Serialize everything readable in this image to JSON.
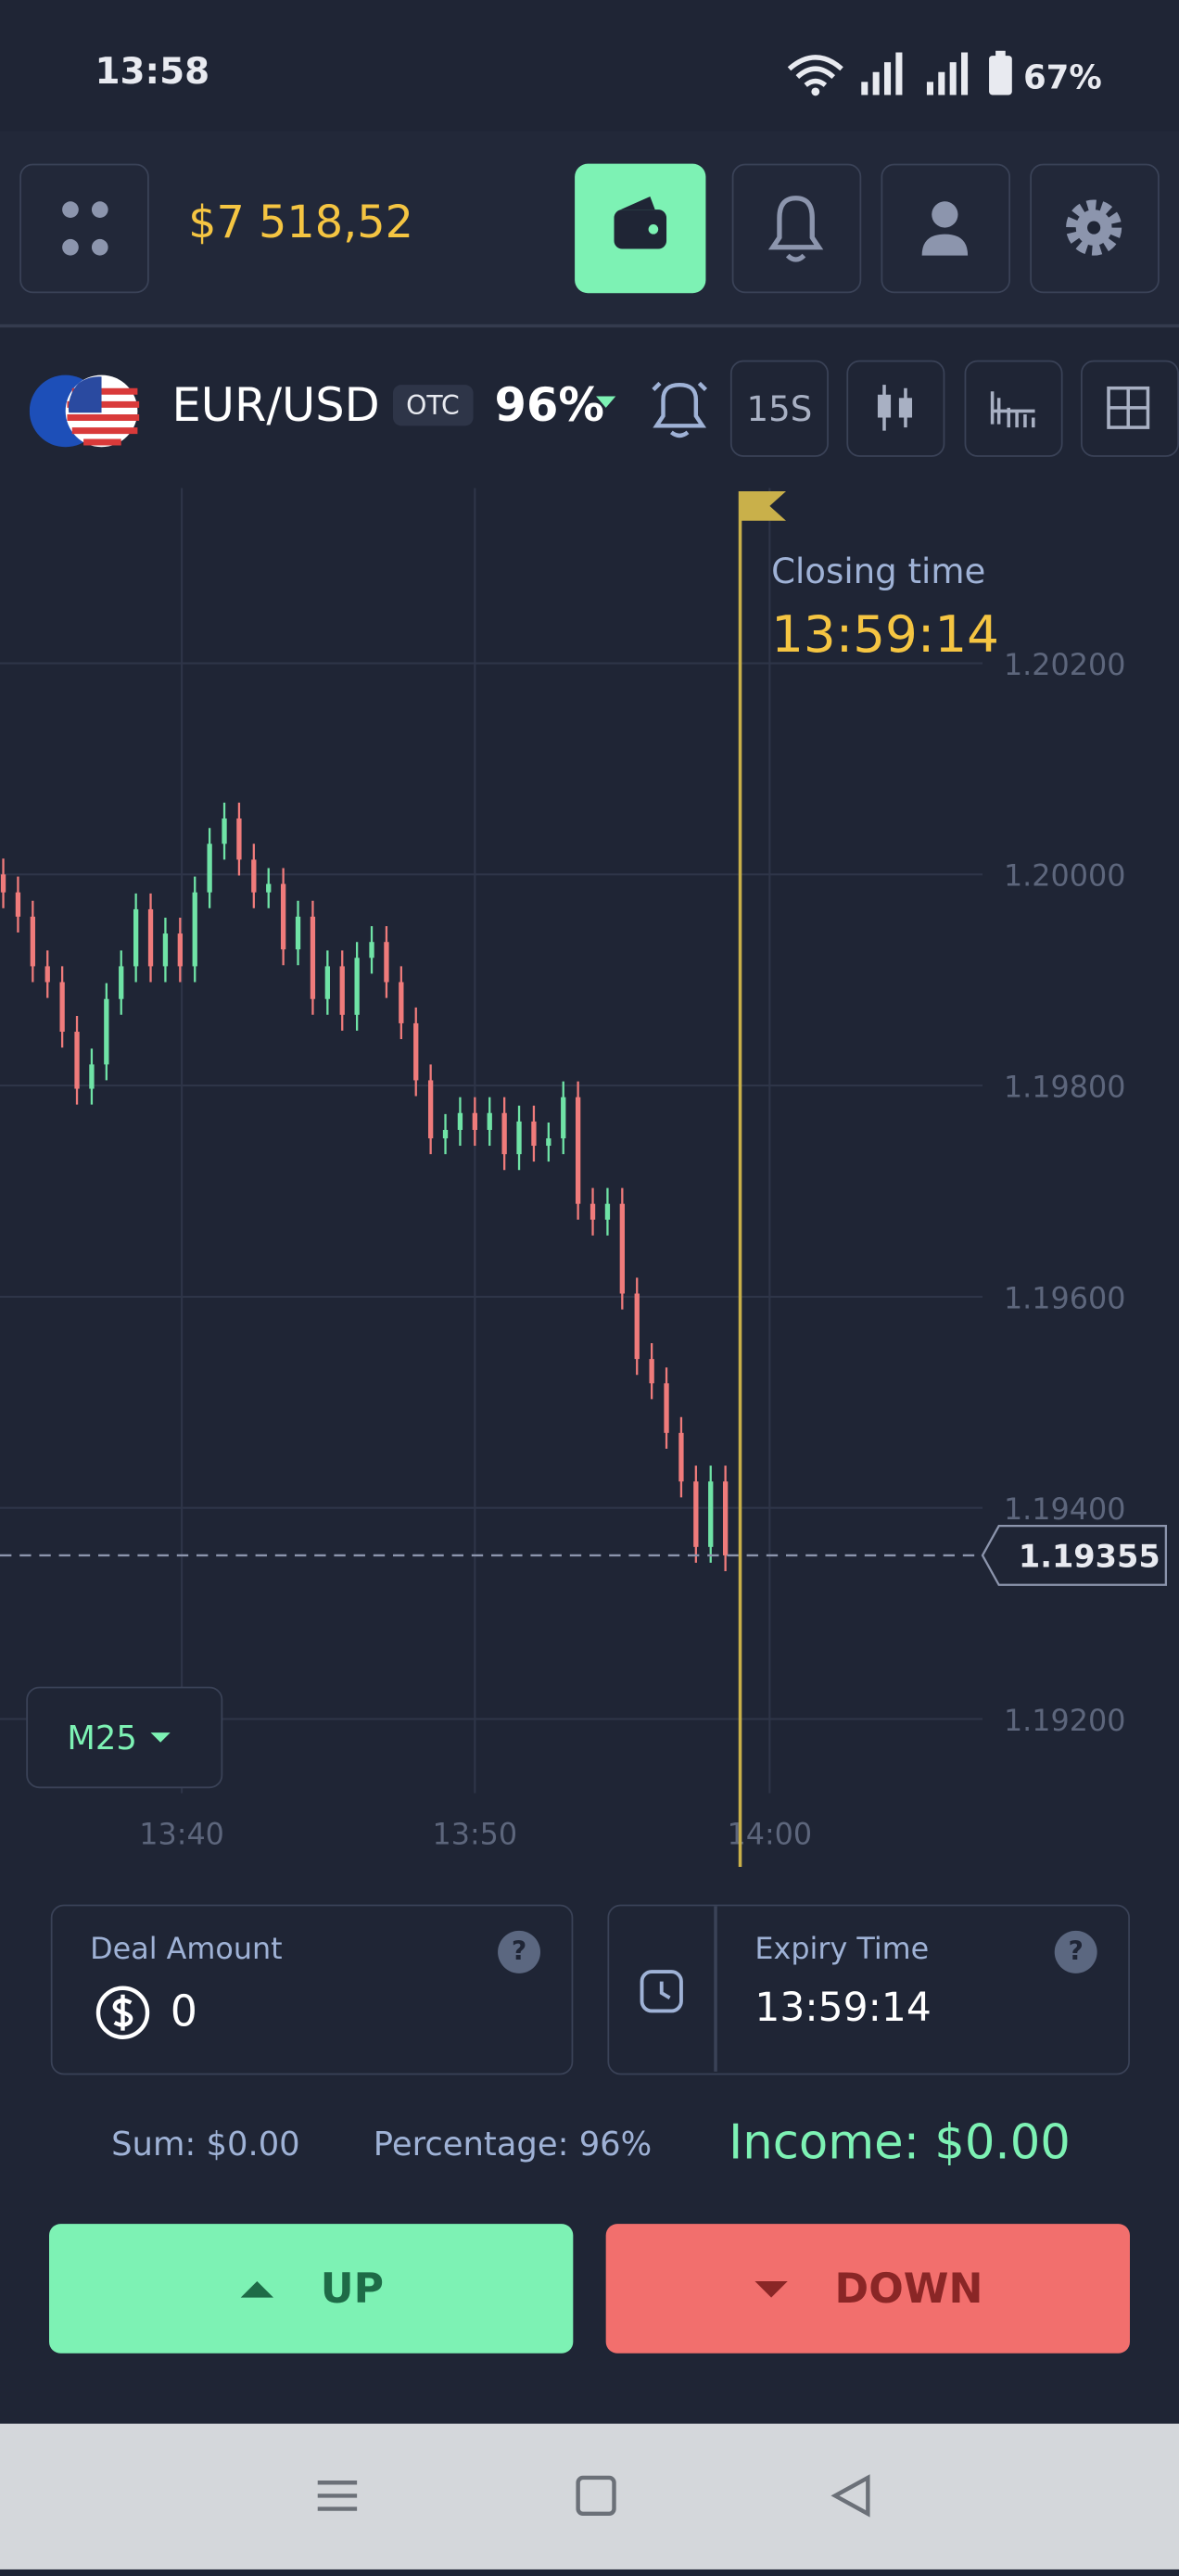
{
  "status_bar": {
    "time": "13:58",
    "battery": "67%"
  },
  "header": {
    "balance": "$7 518,52"
  },
  "asset_bar": {
    "pair": "EUR/USD",
    "badge": "OTC",
    "payout": "96%",
    "timeframe": "15S"
  },
  "chart_data": {
    "type": "candlestick",
    "up_color": "#6fe3a6",
    "down_color": "#ef7b7b",
    "open": [
      1.2,
      1.19983,
      1.1996,
      1.19913,
      1.19898,
      1.19851,
      1.19797,
      1.1982,
      1.19882,
      1.19913,
      1.19967,
      1.19913,
      1.19944,
      1.19913,
      1.19983,
      1.20029,
      1.20053,
      1.20014,
      1.19983,
      1.19991,
      1.19929,
      1.1996,
      1.19882,
      1.19913,
      1.19867,
      1.19921,
      1.19936,
      1.19898,
      1.19859,
      1.19805,
      1.1975,
      1.19758,
      1.19774,
      1.19758,
      1.19774,
      1.19735,
      1.19766,
      1.19743,
      1.1975,
      1.19789,
      1.19688,
      1.19673,
      1.19688,
      1.19603,
      1.19541,
      1.19518,
      1.19471,
      1.19425,
      1.19363,
      1.19425
    ],
    "high": [
      1.20015,
      1.19998,
      1.19975,
      1.19928,
      1.19913,
      1.19866,
      1.19835,
      1.19897,
      1.19928,
      1.19982,
      1.19982,
      1.19959,
      1.19959,
      1.19998,
      1.20044,
      1.20068,
      1.20068,
      1.20029,
      1.20006,
      1.20006,
      1.19975,
      1.19975,
      1.19928,
      1.19928,
      1.19936,
      1.19951,
      1.19951,
      1.19913,
      1.19874,
      1.1982,
      1.19773,
      1.19789,
      1.19789,
      1.19789,
      1.19789,
      1.19781,
      1.19781,
      1.19765,
      1.19804,
      1.19804,
      1.19703,
      1.19703,
      1.19703,
      1.19618,
      1.19556,
      1.19533,
      1.19486,
      1.1944,
      1.1944,
      1.1944
    ],
    "low": [
      1.19968,
      1.19945,
      1.19898,
      1.19883,
      1.19836,
      1.19782,
      1.19782,
      1.19805,
      1.19867,
      1.19898,
      1.19898,
      1.19898,
      1.19898,
      1.19898,
      1.19968,
      1.20014,
      1.19999,
      1.19968,
      1.19968,
      1.19914,
      1.19914,
      1.19867,
      1.19867,
      1.19852,
      1.19852,
      1.19906,
      1.19883,
      1.19844,
      1.1979,
      1.19735,
      1.19735,
      1.19743,
      1.19743,
      1.19743,
      1.1972,
      1.1972,
      1.19728,
      1.19728,
      1.19735,
      1.19673,
      1.19658,
      1.19658,
      1.19588,
      1.19526,
      1.19503,
      1.19456,
      1.1941,
      1.19348,
      1.19348,
      1.1934
    ],
    "close": [
      1.19983,
      1.1996,
      1.19913,
      1.19898,
      1.19851,
      1.19797,
      1.1982,
      1.19882,
      1.19913,
      1.19967,
      1.19913,
      1.19944,
      1.19913,
      1.19983,
      1.20029,
      1.20053,
      1.20014,
      1.19983,
      1.19991,
      1.19929,
      1.1996,
      1.19882,
      1.19913,
      1.19867,
      1.19921,
      1.19936,
      1.19898,
      1.19859,
      1.19805,
      1.1975,
      1.19758,
      1.19774,
      1.19758,
      1.19774,
      1.19735,
      1.19766,
      1.19743,
      1.1975,
      1.19789,
      1.19688,
      1.19673,
      1.19688,
      1.19603,
      1.19541,
      1.19518,
      1.19471,
      1.19425,
      1.19363,
      1.19425,
      1.19355
    ],
    "ylim": [
      1.19122,
      1.20366
    ],
    "yticks": [
      {
        "value": 1.202,
        "label": "1.20200"
      },
      {
        "value": 1.2,
        "label": "1.20000"
      },
      {
        "value": 1.198,
        "label": "1.19800"
      },
      {
        "value": 1.196,
        "label": "1.19600"
      },
      {
        "value": 1.194,
        "label": "1.19400"
      },
      {
        "value": 1.192,
        "label": "1.19200"
      }
    ],
    "x_labels": [
      "13:40",
      "13:50",
      "14:00"
    ],
    "current_price": 1.19355,
    "closing_label": "Closing time",
    "closing_time": "13:59:14",
    "interval": "M25"
  },
  "deal": {
    "amount_label": "Deal Amount",
    "amount": "0",
    "expiry_label": "Expiry Time",
    "expiry": "13:59:14",
    "help_icon": "?"
  },
  "summary": {
    "sum": "Sum: $0.00",
    "percentage": "Percentage: 96%",
    "income": "Income: $0.00"
  },
  "buttons": {
    "up": "UP",
    "down": "DOWN"
  }
}
